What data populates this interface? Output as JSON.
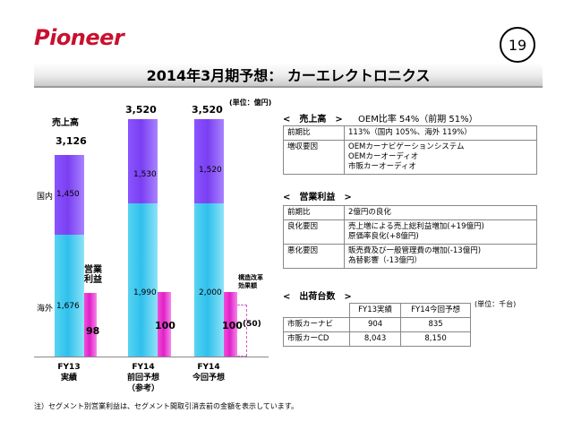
{
  "header": {
    "logo": "Pioneer",
    "page_number": "19",
    "title": "2014年3月期予想：  カーエレクトロニクス",
    "unit_chart": "(単位：億円)"
  },
  "chart": {
    "label_sales": "売上高",
    "label_domestic": "国内",
    "label_overseas": "海外",
    "label_op": "営業\n利益",
    "label_restructure": "構造改革\n効果額",
    "fy13": {
      "total": "3,126",
      "domestic": "1,450",
      "overseas": "1,676",
      "op": "98",
      "cat": "FY13\n実績"
    },
    "fy14p": {
      "total": "3,520",
      "domestic": "1,530",
      "overseas": "1,990",
      "op": "100",
      "cat": "FY14\n前回予想\n（参考）"
    },
    "fy14n": {
      "total": "3,520",
      "domestic": "1,520",
      "overseas": "2,000",
      "op": "100",
      "restructure": "(50)",
      "cat": "FY14\n今回予想"
    }
  },
  "sales": {
    "heading": "<　売上高　>",
    "oem_ratio": "OEM比率 54%（前期  51%）",
    "rows": [
      {
        "k": "前期比",
        "v": "113%（国内 105%、海外 119%）"
      },
      {
        "k": "増収要因",
        "v": "OEMカーナビゲーションシステム\nOEMカーオーディオ\n市販カーオーディオ"
      }
    ]
  },
  "op": {
    "heading": "<　営業利益　>",
    "rows": [
      {
        "k": "前期比",
        "v": "2億円の良化"
      },
      {
        "k": "良化要因",
        "v": "売上増による売上総利益増加(+19億円)\n原価率良化(+8億円)"
      },
      {
        "k": "悪化要因",
        "v": "販売費及び一般管理費の増加(-13億円)\n為替影響（-13億円）"
      }
    ]
  },
  "shipments": {
    "heading": "<　出荷台数　>",
    "unit": "(単位：千台)",
    "headers": [
      "",
      "FY13実績",
      "FY14今回予想"
    ],
    "rows": [
      [
        "市販カーナビ",
        "904",
        "835"
      ],
      [
        "市販カーCD",
        "8,043",
        "8,150"
      ]
    ]
  },
  "footnote": "注）セグメント別営業利益は、セグメント間取引消去前の金額を表示しています。",
  "colors": {
    "domestic": "#7a3ff2",
    "overseas": "#2fc0ec",
    "op": "#e021c8",
    "logo": "#c8102e"
  }
}
